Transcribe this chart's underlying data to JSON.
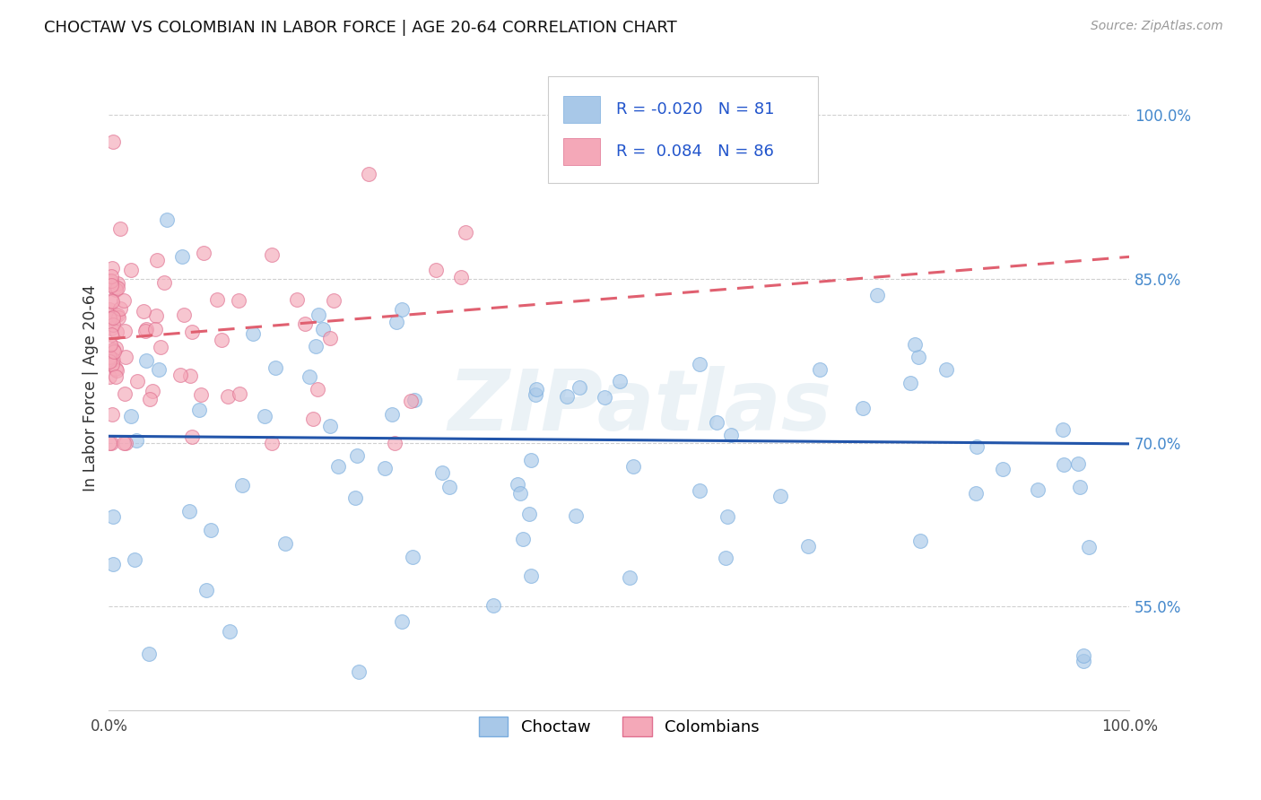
{
  "title": "CHOCTAW VS COLOMBIAN IN LABOR FORCE | AGE 20-64 CORRELATION CHART",
  "source": "Source: ZipAtlas.com",
  "ylabel": "In Labor Force | Age 20-64",
  "legend_labels": [
    "Choctaw",
    "Colombians"
  ],
  "choctaw_R": -0.02,
  "choctaw_N": 81,
  "colombian_R": 0.084,
  "colombian_N": 86,
  "choctaw_color": "#a8c8e8",
  "colombian_color": "#f4a8b8",
  "choctaw_edge_color": "#7aadde",
  "colombian_edge_color": "#e07090",
  "choctaw_line_color": "#2255aa",
  "colombian_line_color": "#e06070",
  "xmin": 0.0,
  "xmax": 1.0,
  "ymin": 0.455,
  "ymax": 1.045,
  "right_yticks": [
    0.55,
    0.7,
    0.85,
    1.0
  ],
  "right_yticklabels": [
    "55.0%",
    "70.0%",
    "85.0%",
    "100.0%"
  ],
  "xtick_labels": [
    "0.0%",
    "100.0%"
  ],
  "watermark": "ZIPatlas"
}
